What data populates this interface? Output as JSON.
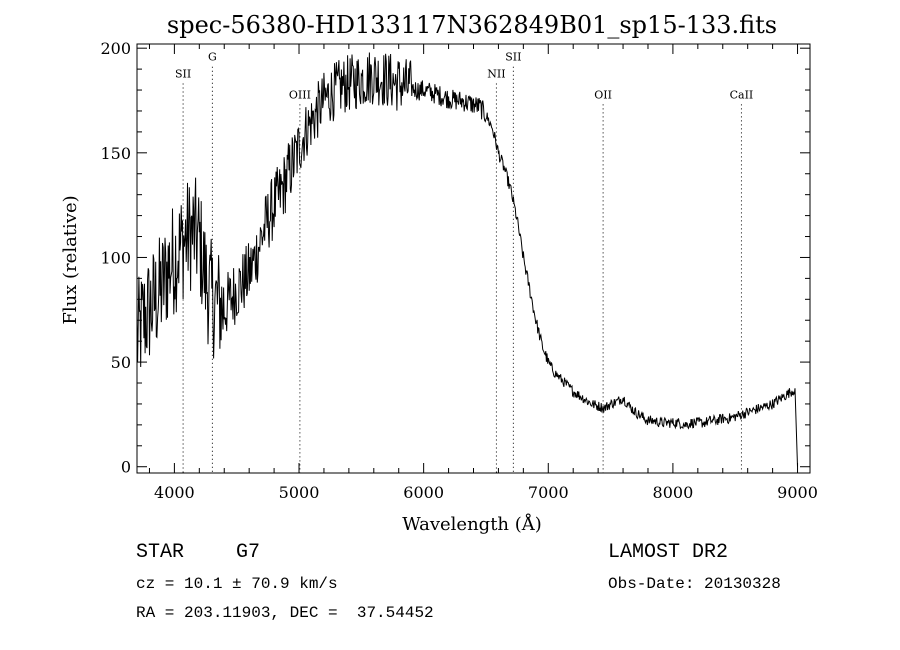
{
  "chart_data": {
    "type": "line",
    "title": "spec-56380-HD133117N362849B01_sp15-133.fits",
    "xlabel": "Wavelength (Å)",
    "ylabel": "Flux (relative)",
    "xlim": [
      3700,
      9100
    ],
    "ylim": [
      -3,
      202
    ],
    "x_ticks": [
      4000,
      5000,
      6000,
      7000,
      8000,
      9000
    ],
    "y_ticks": [
      0,
      50,
      100,
      150,
      200
    ],
    "grid": false,
    "series": [
      {
        "x": [
          3700,
          3750,
          3800,
          3850,
          3900,
          3950,
          4000,
          4050,
          4100,
          4150,
          4200,
          4250,
          4300,
          4350,
          4400,
          4450,
          4500,
          4550,
          4600,
          4650,
          4700,
          4750,
          4800,
          4850,
          4900,
          4950,
          5000,
          5050,
          5100,
          5150,
          5200,
          5250,
          5300,
          5350,
          5400,
          5450,
          5500,
          5550,
          5600,
          5650,
          5700,
          5750,
          5800,
          5850,
          5900,
          5950,
          6000,
          6050,
          6100,
          6150,
          6200,
          6250,
          6300,
          6350,
          6400,
          6450,
          6500,
          6550,
          6580,
          6600,
          6650,
          6700,
          6750,
          6800,
          6850,
          6900,
          6950,
          7000,
          7050,
          7100,
          7150,
          7200,
          7250,
          7300,
          7350,
          7400,
          7450,
          7500,
          7550,
          7600,
          7650,
          7700,
          7750,
          7800,
          7850,
          7900,
          7950,
          8000,
          8050,
          8100,
          8150,
          8200,
          8250,
          8300,
          8350,
          8400,
          8450,
          8500,
          8550,
          8600,
          8650,
          8700,
          8750,
          8800,
          8850,
          8900,
          8950,
          8980,
          9000
        ],
        "y": [
          60,
          70,
          75,
          80,
          85,
          95,
          100,
          105,
          110,
          112,
          108,
          90,
          80,
          78,
          75,
          80,
          85,
          88,
          92,
          100,
          110,
          118,
          125,
          130,
          138,
          145,
          152,
          160,
          165,
          170,
          175,
          178,
          180,
          182,
          183,
          184,
          185,
          186,
          187,
          186,
          185,
          184,
          183,
          182,
          181,
          180,
          180,
          179,
          178,
          177,
          176,
          175,
          175,
          174,
          173,
          172,
          168,
          162,
          155,
          150,
          142,
          132,
          118,
          100,
          85,
          70,
          58,
          50,
          45,
          42,
          39,
          36,
          34,
          32,
          30,
          29,
          28,
          30,
          31,
          33,
          29,
          26,
          24,
          22,
          22,
          21,
          21,
          21,
          21,
          20,
          21,
          21,
          21,
          22,
          22,
          23,
          23,
          24,
          25,
          26,
          27,
          28,
          29,
          30,
          32,
          34,
          36,
          37,
          0
        ]
      }
    ],
    "lines": [
      {
        "label": "SII",
        "x": 4070,
        "label_y": 186
      },
      {
        "label": "G",
        "x": 4305,
        "label_y": 194
      },
      {
        "label": "OIII",
        "x": 5007,
        "label_y": 176
      },
      {
        "label": "NII",
        "x": 6584,
        "label_y": 186
      },
      {
        "label": "SII",
        "x": 6720,
        "label_y": 194
      },
      {
        "label": "OII",
        "x": 7440,
        "label_y": 176
      },
      {
        "label": "CaII",
        "x": 8550,
        "label_y": 176
      }
    ]
  },
  "info": {
    "object_type": "STAR",
    "subclass": "G7",
    "survey": "LAMOST DR2",
    "cz_line": "cz = 10.1 ± 70.9 km/s",
    "obs_date_line": "Obs-Date: 20130328",
    "radec_line": "RA = 203.11903, DEC =  37.54452"
  }
}
